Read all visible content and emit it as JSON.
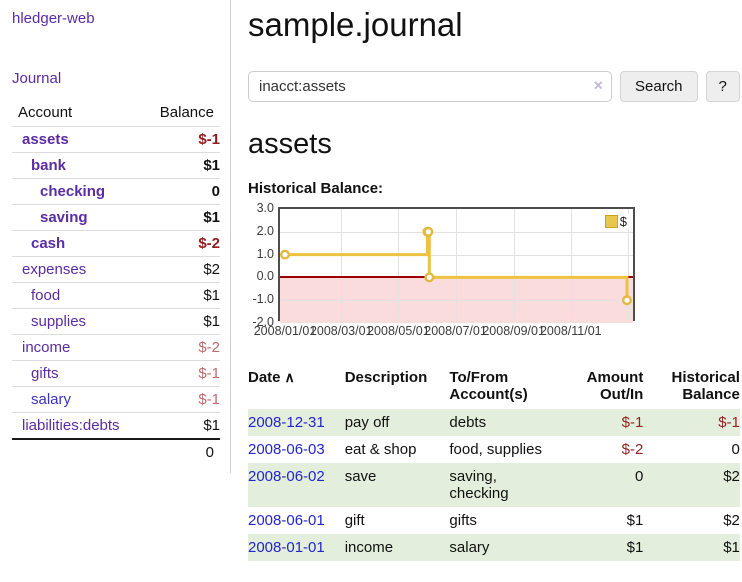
{
  "colors": {
    "brand_purple": "#5b2ca3",
    "visited_link": "#3b33bb",
    "negative_strong": "#8f1d1d",
    "negative_muted": "#bd6c6f",
    "date_link_blue": "#2424cc",
    "table_negative": "#962121",
    "row_green": "#e3efdc",
    "chart_gold": "#edc240",
    "negative_zone_pink": "#fbdcdc",
    "zero_line_red": "#9a0000"
  },
  "sidebar": {
    "brand": "hledger-web",
    "journal_label": "Journal",
    "accounts": {
      "header_account": "Account",
      "header_balance": "Balance",
      "rows": [
        {
          "name": "assets",
          "depth": 1,
          "bold": true,
          "balance": "$-1",
          "balance_style": "neg-strong"
        },
        {
          "name": "bank",
          "depth": 2,
          "bold": true,
          "balance": "$1",
          "balance_style": "pos"
        },
        {
          "name": "checking",
          "depth": 3,
          "bold": true,
          "balance": "0",
          "balance_style": "pos"
        },
        {
          "name": "saving",
          "depth": 3,
          "bold": true,
          "balance": "$1",
          "balance_style": "pos"
        },
        {
          "name": "cash",
          "depth": 2,
          "bold": true,
          "balance": "$-2",
          "balance_style": "neg-strong"
        },
        {
          "name": "expenses",
          "depth": 1,
          "bold": false,
          "balance": "$2",
          "balance_style": "pos"
        },
        {
          "name": "food",
          "depth": 2,
          "bold": false,
          "balance": "$1",
          "balance_style": "pos"
        },
        {
          "name": "supplies",
          "depth": 2,
          "bold": false,
          "balance": "$1",
          "balance_style": "pos"
        },
        {
          "name": "income",
          "depth": 1,
          "bold": false,
          "balance": "$-2",
          "balance_style": "neg-muted"
        },
        {
          "name": "gifts",
          "depth": 2,
          "bold": false,
          "balance": "$-1",
          "balance_style": "neg-muted"
        },
        {
          "name": "salary",
          "depth": 2,
          "bold": false,
          "balance": "$-1",
          "balance_style": "neg-muted",
          "link_style": "visited"
        },
        {
          "name": "liabilities:debts",
          "depth": 1,
          "bold": false,
          "balance": "$1",
          "balance_style": "pos"
        }
      ],
      "total": "0"
    }
  },
  "main": {
    "title": "sample.journal",
    "search": {
      "value": "inacct:assets",
      "clear_icon": "×",
      "button_label": "Search",
      "help_label": "?"
    },
    "account_heading": "assets",
    "register": {
      "sort_icon": "∧",
      "headers": [
        "Date",
        "Description",
        "To/From Account(s)",
        "Amount Out/In",
        "Historical Balance"
      ],
      "rows": [
        {
          "date": "2008-12-31",
          "description": "pay off",
          "accounts": "debts",
          "amount": "$-1",
          "amount_neg": true,
          "balance": "$-1",
          "balance_neg": true
        },
        {
          "date": "2008-06-03",
          "description": "eat & shop",
          "accounts": "food, supplies",
          "amount": "$-2",
          "amount_neg": true,
          "balance": "0",
          "balance_neg": false
        },
        {
          "date": "2008-06-02",
          "description": "save",
          "accounts": "saving, checking",
          "amount": "0",
          "amount_neg": false,
          "balance": "$2",
          "balance_neg": false
        },
        {
          "date": "2008-06-01",
          "description": "gift",
          "accounts": "gifts",
          "amount": "$1",
          "amount_neg": false,
          "balance": "$2",
          "balance_neg": false
        },
        {
          "date": "2008-01-01",
          "description": "income",
          "accounts": "salary",
          "amount": "$1",
          "amount_neg": false,
          "balance": "$1",
          "balance_neg": false
        }
      ]
    }
  },
  "chart_data": {
    "type": "line",
    "title": "Historical Balance:",
    "step": true,
    "series": [
      {
        "name": "$",
        "color": "#edc240",
        "points": [
          {
            "x": "2008/01/01",
            "y": 1
          },
          {
            "x": "2008/06/01",
            "y": 2
          },
          {
            "x": "2008/06/02",
            "y": 2
          },
          {
            "x": "2008/06/03",
            "y": 0
          },
          {
            "x": "2008/12/31",
            "y": -1
          }
        ]
      }
    ],
    "xticks": [
      "2008/01/01",
      "2008/03/01",
      "2008/05/01",
      "2008/07/01",
      "2008/09/01",
      "2008/11/01"
    ],
    "x_gridlines": [
      "2008/03/01",
      "2008/05/01",
      "2008/07/01",
      "2008/09/01",
      "2008/11/01",
      "2009/01/01"
    ],
    "yticks": [
      "3.0",
      "2.0",
      "1.0",
      "0.0",
      "-1.0",
      "-2.0"
    ],
    "ylim": [
      -2,
      3
    ],
    "grid": true,
    "legend": {
      "label": "$",
      "position": "top-right"
    }
  }
}
